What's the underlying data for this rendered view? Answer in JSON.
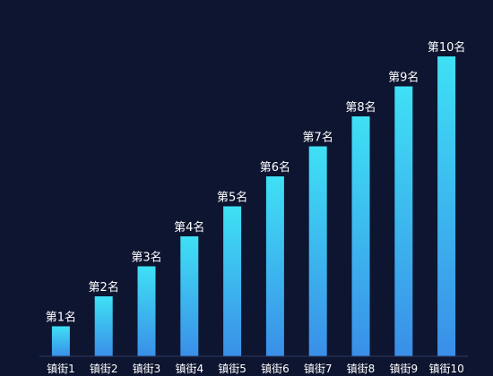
{
  "chart_data": {
    "type": "bar",
    "categories": [
      "镇街1",
      "镇街2",
      "镇街3",
      "镇街4",
      "镇街5",
      "镇街6",
      "镇街7",
      "镇街8",
      "镇街9",
      "镇街10"
    ],
    "values": [
      1,
      2,
      3,
      4,
      5,
      6,
      7,
      8,
      9,
      10
    ],
    "data_labels": [
      "第1名",
      "第2名",
      "第3名",
      "第4名",
      "第5名",
      "第6名",
      "第7名",
      "第8名",
      "第9名",
      "第10名"
    ],
    "ylim": [
      0,
      10
    ],
    "grid": false,
    "axis_color": "#2e3a63",
    "bar_color_top": "#3fe0f5",
    "bar_color_bottom": "#3a8fe8",
    "background": "#0e1530",
    "text_color": "#ffffff"
  }
}
